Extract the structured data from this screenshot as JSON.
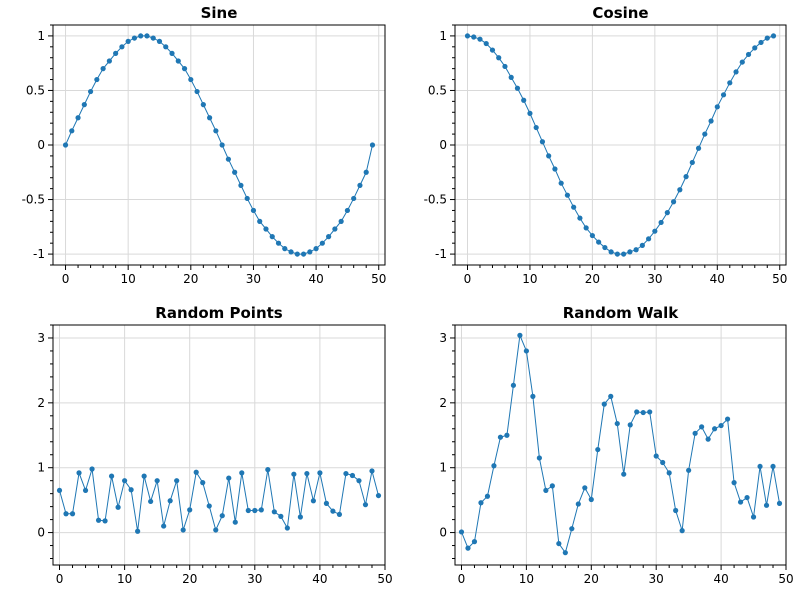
{
  "colors": {
    "series": "#1f77b4",
    "grid": "#d9d9d9",
    "frame": "#000000"
  },
  "chart_data": [
    {
      "type": "line",
      "title": "Sine",
      "xlabel": "",
      "ylabel": "",
      "xlim": [
        -2,
        51
      ],
      "ylim": [
        -1.1,
        1.1
      ],
      "xticks": [
        0,
        10,
        20,
        30,
        40,
        50
      ],
      "yticks": [
        -1,
        -0.5,
        0,
        0.5,
        1
      ],
      "grid": true,
      "series": [
        {
          "x": [
            0,
            1,
            2,
            3,
            4,
            5,
            6,
            7,
            8,
            9,
            10,
            11,
            12,
            13,
            14,
            15,
            16,
            17,
            18,
            19,
            20,
            21,
            22,
            23,
            24,
            25,
            26,
            27,
            28,
            29,
            30,
            31,
            32,
            33,
            34,
            35,
            36,
            37,
            38,
            39,
            40,
            41,
            42,
            43,
            44,
            45,
            46,
            47,
            48,
            49
          ],
          "values": [
            0,
            0.13,
            0.25,
            0.37,
            0.49,
            0.6,
            0.7,
            0.77,
            0.84,
            0.9,
            0.95,
            0.98,
            1,
            1,
            0.98,
            0.95,
            0.9,
            0.84,
            0.77,
            0.7,
            0.6,
            0.49,
            0.37,
            0.25,
            0.13,
            0,
            -0.13,
            -0.25,
            -0.37,
            -0.49,
            -0.6,
            -0.7,
            -0.77,
            -0.84,
            -0.9,
            -0.95,
            -0.98,
            -1,
            -1,
            -0.98,
            -0.95,
            -0.9,
            -0.84,
            -0.77,
            -0.7,
            -0.6,
            -0.49,
            -0.37,
            -0.25,
            0
          ]
        }
      ]
    },
    {
      "type": "line",
      "title": "Cosine",
      "xlabel": "",
      "ylabel": "",
      "xlim": [
        -2,
        51
      ],
      "ylim": [
        -1.1,
        1.1
      ],
      "xticks": [
        0,
        10,
        20,
        30,
        40,
        50
      ],
      "yticks": [
        -1,
        -0.5,
        0,
        0.5,
        1
      ],
      "grid": true,
      "series": [
        {
          "x": [
            0,
            1,
            2,
            3,
            4,
            5,
            6,
            7,
            8,
            9,
            10,
            11,
            12,
            13,
            14,
            15,
            16,
            17,
            18,
            19,
            20,
            21,
            22,
            23,
            24,
            25,
            26,
            27,
            28,
            29,
            30,
            31,
            32,
            33,
            34,
            35,
            36,
            37,
            38,
            39,
            40,
            41,
            42,
            43,
            44,
            45,
            46,
            47,
            48,
            49
          ],
          "values": [
            1,
            0.99,
            0.97,
            0.93,
            0.87,
            0.8,
            0.72,
            0.62,
            0.52,
            0.41,
            0.29,
            0.16,
            0.03,
            -0.1,
            -0.22,
            -0.35,
            -0.46,
            -0.57,
            -0.67,
            -0.76,
            -0.83,
            -0.89,
            -0.94,
            -0.98,
            -1,
            -1,
            -0.98,
            -0.96,
            -0.92,
            -0.86,
            -0.79,
            -0.71,
            -0.62,
            -0.52,
            -0.41,
            -0.29,
            -0.16,
            -0.03,
            0.1,
            0.22,
            0.35,
            0.46,
            0.57,
            0.67,
            0.76,
            0.83,
            0.89,
            0.94,
            0.98,
            1
          ]
        }
      ]
    },
    {
      "type": "line",
      "title": "Random Points",
      "xlabel": "",
      "ylabel": "",
      "xlim": [
        -1,
        50
      ],
      "ylim": [
        -0.5,
        3.2
      ],
      "xticks": [
        0,
        10,
        20,
        30,
        40,
        50
      ],
      "yticks": [
        0,
        1,
        2,
        3
      ],
      "grid": true,
      "series": [
        {
          "x": [
            0,
            1,
            2,
            3,
            4,
            5,
            6,
            7,
            8,
            9,
            10,
            11,
            12,
            13,
            14,
            15,
            16,
            17,
            18,
            19,
            20,
            21,
            22,
            23,
            24,
            25,
            26,
            27,
            28,
            29,
            30,
            31,
            32,
            33,
            34,
            35,
            36,
            37,
            38,
            39,
            40,
            41,
            42,
            43,
            44,
            45,
            46,
            47,
            48,
            49
          ],
          "values": [
            0.65,
            0.29,
            0.29,
            0.92,
            0.65,
            0.98,
            0.19,
            0.18,
            0.87,
            0.39,
            0.8,
            0.66,
            0.02,
            0.87,
            0.48,
            0.8,
            0.1,
            0.49,
            0.8,
            0.04,
            0.35,
            0.93,
            0.77,
            0.41,
            0.04,
            0.26,
            0.84,
            0.16,
            0.92,
            0.34,
            0.34,
            0.35,
            0.97,
            0.32,
            0.25,
            0.07,
            0.9,
            0.24,
            0.91,
            0.49,
            0.92,
            0.45,
            0.33,
            0.28,
            0.91,
            0.88,
            0.8,
            0.43,
            0.95,
            0.57
          ]
        }
      ]
    },
    {
      "type": "line",
      "title": "Random Walk",
      "xlabel": "",
      "ylabel": "",
      "xlim": [
        -1,
        50
      ],
      "ylim": [
        -0.5,
        3.2
      ],
      "xticks": [
        0,
        10,
        20,
        30,
        40,
        50
      ],
      "yticks": [
        0,
        1,
        2,
        3
      ],
      "grid": true,
      "series": [
        {
          "x": [
            0,
            1,
            2,
            3,
            4,
            5,
            6,
            7,
            8,
            9,
            10,
            11,
            12,
            13,
            14,
            15,
            16,
            17,
            18,
            19,
            20,
            21,
            22,
            23,
            24,
            25,
            26,
            27,
            28,
            29,
            30,
            31,
            32,
            33,
            34,
            35,
            36,
            37,
            38,
            39,
            40,
            41,
            42,
            43,
            44,
            45,
            46,
            47,
            48,
            49
          ],
          "values": [
            0.01,
            -0.24,
            -0.14,
            0.46,
            0.56,
            1.03,
            1.47,
            1.5,
            2.27,
            3.04,
            2.8,
            2.1,
            1.15,
            0.65,
            0.72,
            -0.17,
            -0.31,
            0.06,
            0.44,
            0.69,
            0.51,
            1.28,
            1.98,
            2.1,
            1.68,
            0.9,
            1.66,
            1.86,
            1.85,
            1.86,
            1.18,
            1.08,
            0.92,
            0.34,
            0.03,
            0.96,
            1.53,
            1.63,
            1.44,
            1.6,
            1.65,
            1.75,
            0.77,
            0.47,
            0.54,
            0.24,
            1.02,
            0.42,
            1.02,
            0.45
          ]
        }
      ]
    }
  ]
}
